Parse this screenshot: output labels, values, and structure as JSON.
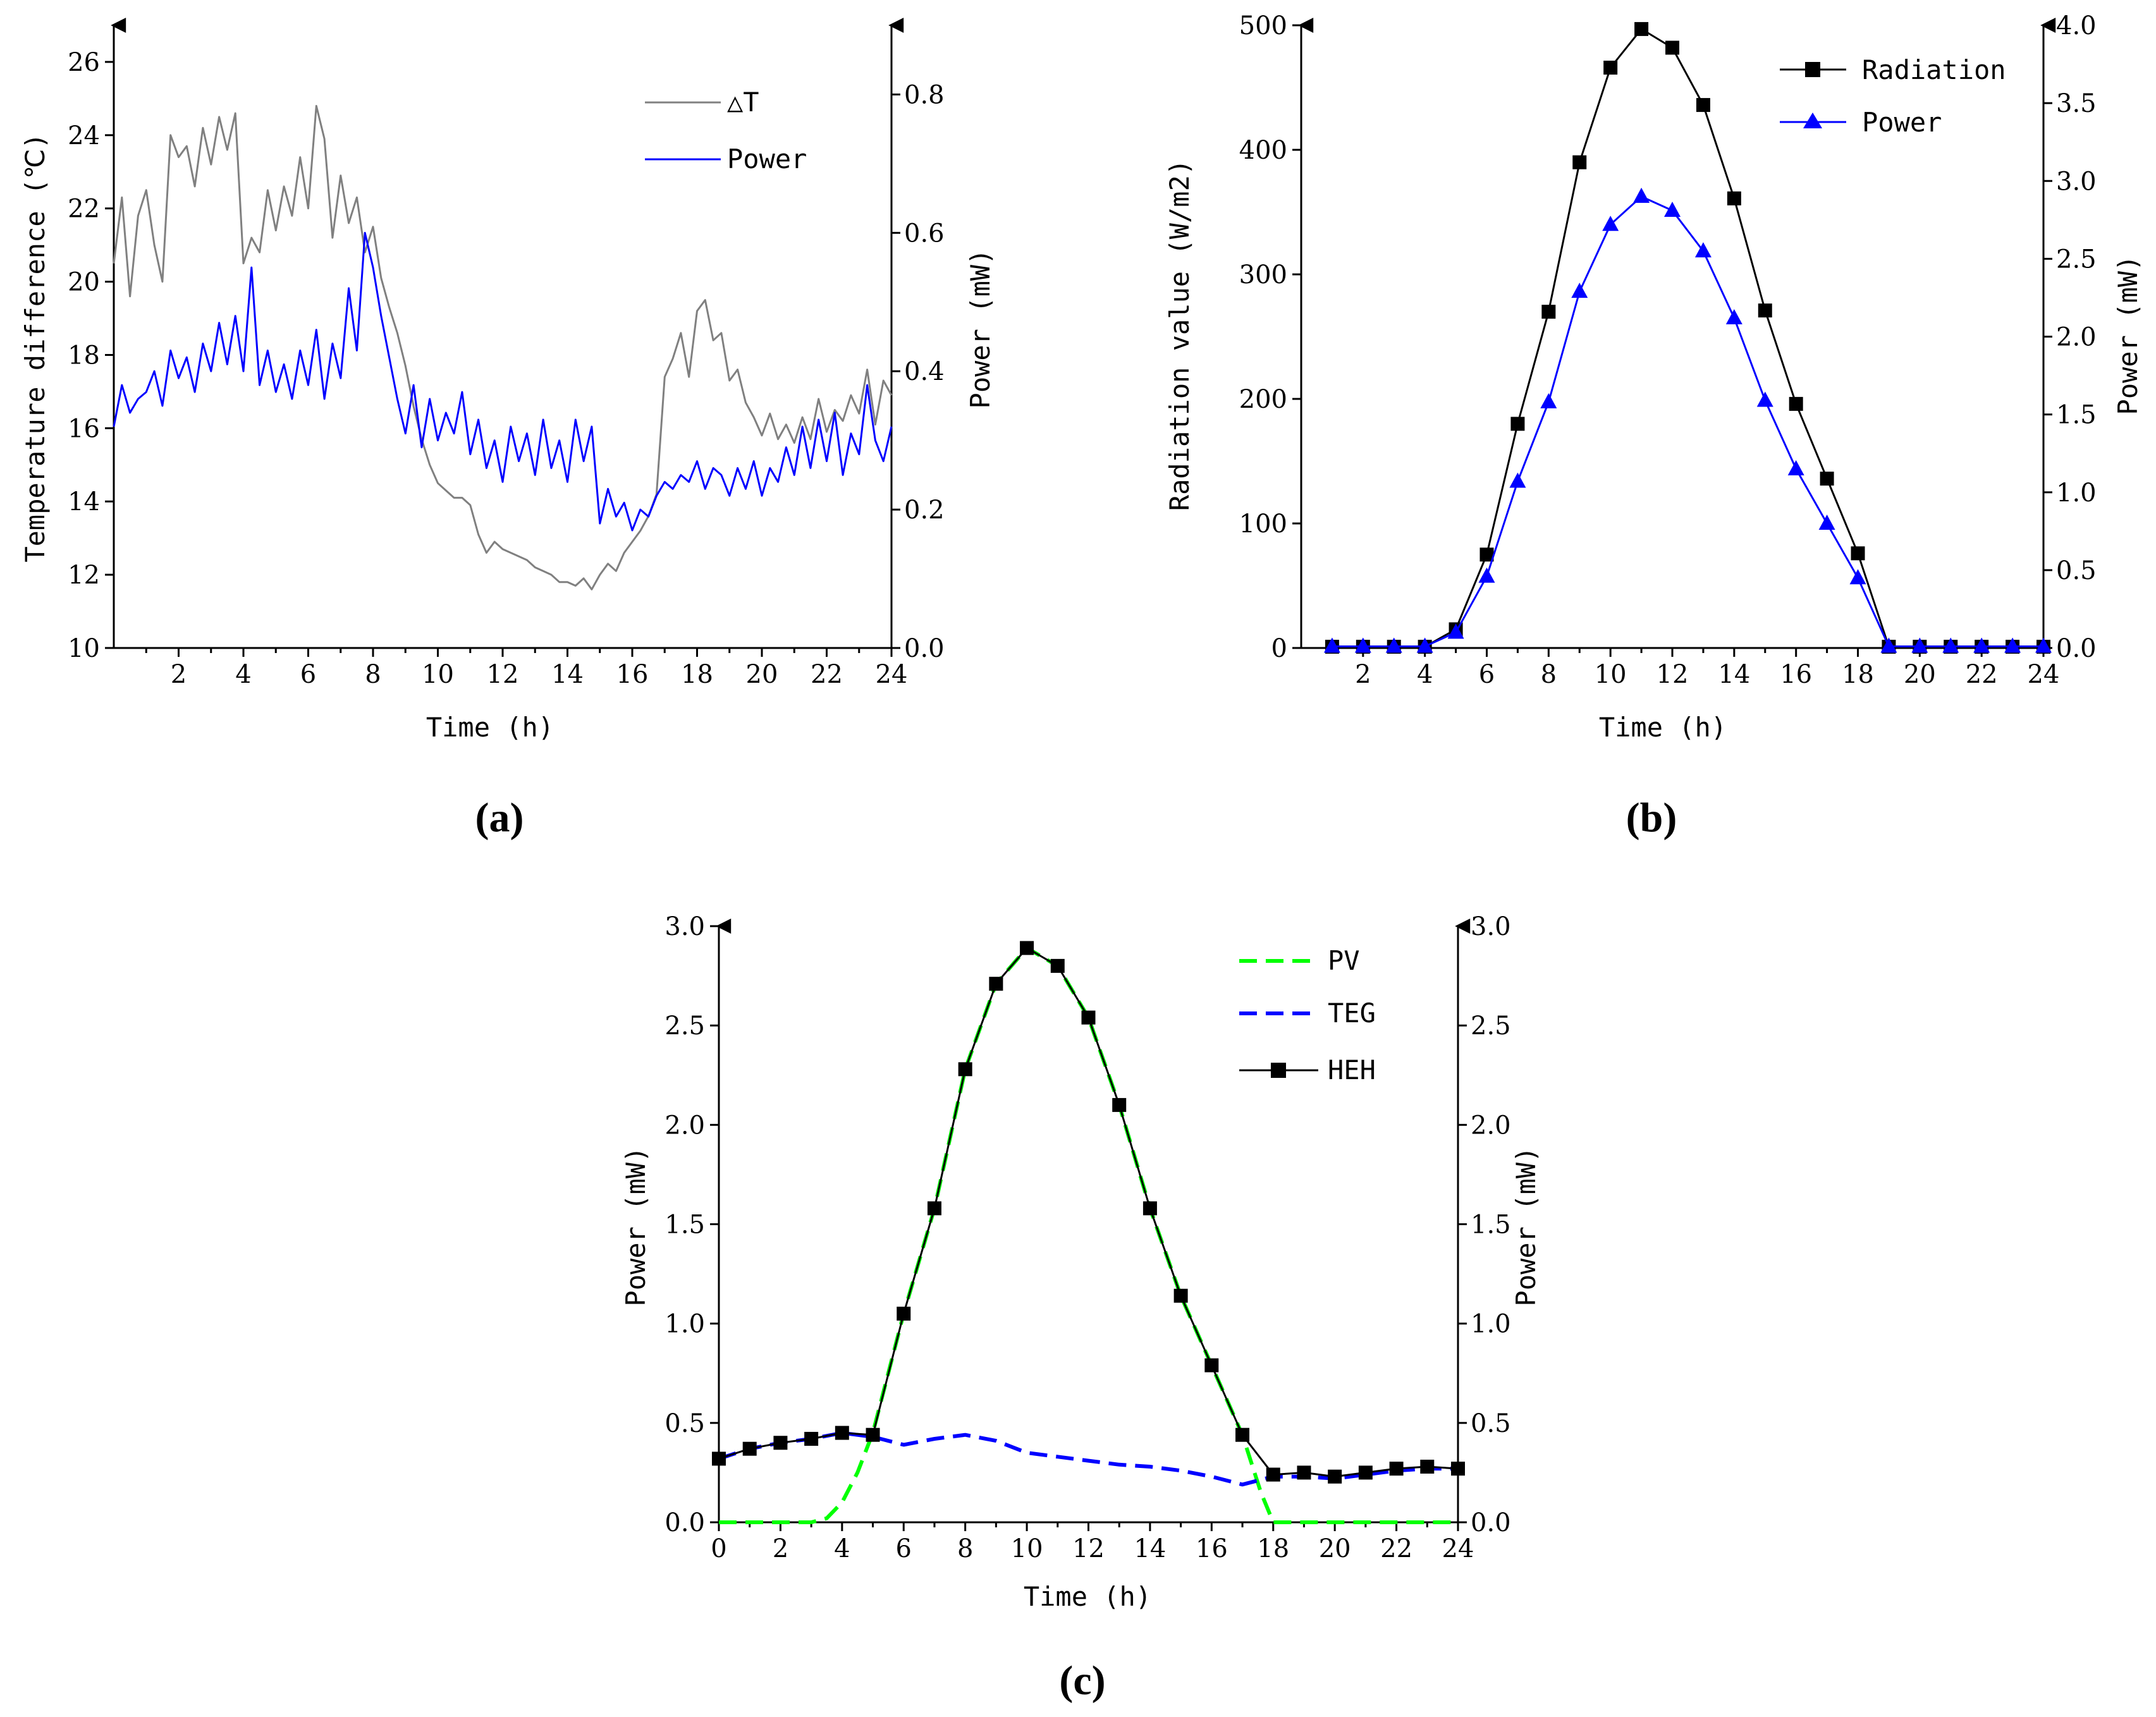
{
  "chart_data": [
    {
      "id": "a",
      "type": "line",
      "caption": "(a)",
      "xlabel": "Time (h)",
      "ylabel": "Temperature difference (℃)",
      "y2label": "Power (mW)",
      "xlim": [
        0,
        24
      ],
      "ylim": [
        10,
        27
      ],
      "y2lim": [
        0,
        0.9
      ],
      "xticks": [
        2,
        4,
        6,
        8,
        10,
        12,
        14,
        16,
        18,
        20,
        22,
        24
      ],
      "yticks": [
        10,
        12,
        14,
        16,
        18,
        20,
        22,
        24,
        26
      ],
      "y2ticks": [
        "0.0",
        "0.2",
        "0.4",
        "0.6",
        "0.8"
      ],
      "series": [
        {
          "name": "△T",
          "axis": "left",
          "color": "#808080",
          "x": [
            0,
            0.25,
            0.5,
            0.75,
            1,
            1.25,
            1.5,
            1.75,
            2,
            2.25,
            2.5,
            2.75,
            3,
            3.25,
            3.5,
            3.75,
            4,
            4.25,
            4.5,
            4.75,
            5,
            5.25,
            5.5,
            5.75,
            6,
            6.25,
            6.5,
            6.75,
            7,
            7.25,
            7.5,
            7.75,
            8,
            8.25,
            8.5,
            8.75,
            9,
            9.25,
            9.5,
            9.75,
            10,
            10.25,
            10.5,
            10.75,
            11,
            11.25,
            11.5,
            11.75,
            12,
            12.25,
            12.5,
            12.75,
            13,
            13.25,
            13.5,
            13.75,
            14,
            14.25,
            14.5,
            14.75,
            15,
            15.25,
            15.5,
            15.75,
            16,
            16.25,
            16.5,
            16.75,
            17,
            17.25,
            17.5,
            17.75,
            18,
            18.25,
            18.5,
            18.75,
            19,
            19.25,
            19.5,
            19.75,
            20,
            20.25,
            20.5,
            20.75,
            21,
            21.25,
            21.5,
            21.75,
            22,
            22.25,
            22.5,
            22.75,
            23,
            23.25,
            23.5,
            23.75,
            24
          ],
          "values": [
            20.5,
            22.3,
            19.6,
            21.8,
            22.5,
            21.0,
            20.0,
            24.0,
            23.4,
            23.7,
            22.6,
            24.2,
            23.2,
            24.5,
            23.6,
            24.6,
            20.5,
            21.2,
            20.8,
            22.5,
            21.4,
            22.6,
            21.8,
            23.4,
            22.0,
            24.8,
            23.9,
            21.2,
            22.9,
            21.6,
            22.3,
            20.8,
            21.5,
            20.1,
            19.3,
            18.6,
            17.7,
            16.6,
            15.7,
            15.0,
            14.5,
            14.3,
            14.1,
            14.1,
            13.9,
            13.1,
            12.6,
            12.9,
            12.7,
            12.6,
            12.5,
            12.4,
            12.2,
            12.1,
            12.0,
            11.8,
            11.8,
            11.7,
            11.9,
            11.6,
            12.0,
            12.3,
            12.1,
            12.6,
            12.9,
            13.2,
            13.6,
            14.2,
            17.4,
            17.9,
            18.6,
            17.4,
            19.2,
            19.5,
            18.4,
            18.6,
            17.3,
            17.6,
            16.7,
            16.3,
            15.8,
            16.4,
            15.7,
            16.1,
            15.6,
            16.3,
            15.7,
            16.8,
            15.9,
            16.5,
            16.2,
            16.9,
            16.4,
            17.6,
            16.1,
            17.3,
            16.9
          ]
        },
        {
          "name": "Power",
          "axis": "right",
          "color": "#0000ff",
          "x": [
            0,
            0.25,
            0.5,
            0.75,
            1,
            1.25,
            1.5,
            1.75,
            2,
            2.25,
            2.5,
            2.75,
            3,
            3.25,
            3.5,
            3.75,
            4,
            4.25,
            4.5,
            4.75,
            5,
            5.25,
            5.5,
            5.75,
            6,
            6.25,
            6.5,
            6.75,
            7,
            7.25,
            7.5,
            7.75,
            8,
            8.25,
            8.5,
            8.75,
            9,
            9.25,
            9.5,
            9.75,
            10,
            10.25,
            10.5,
            10.75,
            11,
            11.25,
            11.5,
            11.75,
            12,
            12.25,
            12.5,
            12.75,
            13,
            13.25,
            13.5,
            13.75,
            14,
            14.25,
            14.5,
            14.75,
            15,
            15.25,
            15.5,
            15.75,
            16,
            16.25,
            16.5,
            16.75,
            17,
            17.25,
            17.5,
            17.75,
            18,
            18.25,
            18.5,
            18.75,
            19,
            19.25,
            19.5,
            19.75,
            20,
            20.25,
            20.5,
            20.75,
            21,
            21.25,
            21.5,
            21.75,
            22,
            22.25,
            22.5,
            22.75,
            23,
            23.25,
            23.5,
            23.75,
            24
          ],
          "values": [
            0.32,
            0.38,
            0.34,
            0.36,
            0.37,
            0.4,
            0.35,
            0.43,
            0.39,
            0.42,
            0.37,
            0.44,
            0.4,
            0.47,
            0.41,
            0.48,
            0.4,
            0.55,
            0.38,
            0.43,
            0.37,
            0.41,
            0.36,
            0.43,
            0.38,
            0.46,
            0.36,
            0.44,
            0.39,
            0.52,
            0.43,
            0.6,
            0.55,
            0.48,
            0.42,
            0.36,
            0.31,
            0.38,
            0.29,
            0.36,
            0.3,
            0.34,
            0.31,
            0.37,
            0.28,
            0.33,
            0.26,
            0.3,
            0.24,
            0.32,
            0.27,
            0.31,
            0.25,
            0.33,
            0.26,
            0.3,
            0.24,
            0.33,
            0.27,
            0.32,
            0.18,
            0.23,
            0.19,
            0.21,
            0.17,
            0.2,
            0.19,
            0.22,
            0.24,
            0.23,
            0.25,
            0.24,
            0.27,
            0.23,
            0.26,
            0.25,
            0.22,
            0.26,
            0.23,
            0.27,
            0.22,
            0.26,
            0.24,
            0.29,
            0.25,
            0.32,
            0.26,
            0.33,
            0.27,
            0.34,
            0.25,
            0.31,
            0.28,
            0.38,
            0.3,
            0.27,
            0.32
          ]
        }
      ]
    },
    {
      "id": "b",
      "type": "line",
      "caption": "(b)",
      "xlabel": "Time (h)",
      "ylabel": "Radiation value (W/m2)",
      "y2label": "Power (mW)",
      "xlim": [
        0,
        24
      ],
      "ylim": [
        0,
        500
      ],
      "y2lim": [
        0,
        4.0
      ],
      "xticks": [
        2,
        4,
        6,
        8,
        10,
        12,
        14,
        16,
        18,
        20,
        22,
        24
      ],
      "yticks": [
        0,
        100,
        200,
        300,
        400,
        500
      ],
      "y2ticks": [
        "0.0",
        "0.5",
        "1.0",
        "1.5",
        "2.0",
        "2.5",
        "3.0",
        "3.5",
        "4.0"
      ],
      "series": [
        {
          "name": "Radiation",
          "axis": "left",
          "color": "#000000",
          "marker": "square",
          "x": [
            1,
            2,
            3,
            4,
            5,
            6,
            7,
            8,
            9,
            10,
            11,
            12,
            13,
            14,
            15,
            16,
            17,
            18,
            19,
            20,
            21,
            22,
            23,
            24
          ],
          "values": [
            1,
            1,
            1,
            1,
            15,
            75,
            180,
            270,
            390,
            466,
            497,
            482,
            436,
            361,
            271,
            196,
            136,
            76,
            1,
            1,
            1,
            1,
            1,
            1
          ]
        },
        {
          "name": "Power",
          "axis": "right",
          "color": "#0000ff",
          "marker": "triangle",
          "x": [
            1,
            2,
            3,
            4,
            5,
            6,
            7,
            8,
            9,
            10,
            11,
            12,
            13,
            14,
            15,
            16,
            17,
            18,
            19,
            20,
            21,
            22,
            23,
            24
          ],
          "values": [
            0.01,
            0.01,
            0.01,
            0.01,
            0.1,
            0.46,
            1.07,
            1.58,
            2.29,
            2.72,
            2.9,
            2.81,
            2.55,
            2.12,
            1.59,
            1.15,
            0.8,
            0.45,
            0.01,
            0.01,
            0.01,
            0.01,
            0.01,
            0.01
          ]
        }
      ]
    },
    {
      "id": "c",
      "type": "line",
      "caption": "(c)",
      "xlabel": "Time (h)",
      "ylabel": "Power (mW)",
      "y2label": "Power (mW)",
      "xlim": [
        0,
        24
      ],
      "ylim": [
        0,
        3.0
      ],
      "y2lim": [
        0,
        3.0
      ],
      "xticks": [
        0,
        2,
        4,
        6,
        8,
        10,
        12,
        14,
        16,
        18,
        20,
        22,
        24
      ],
      "yticks": [
        "0.0",
        "0.5",
        "1.0",
        "1.5",
        "2.0",
        "2.5",
        "3.0"
      ],
      "y2ticks": [
        "0.0",
        "0.5",
        "1.0",
        "1.5",
        "2.0",
        "2.5",
        "3.0"
      ],
      "series": [
        {
          "name": "PV",
          "color": "#00ff00",
          "dashed": true,
          "x": [
            0,
            1,
            2,
            3,
            3.5,
            4,
            4.5,
            5,
            6,
            7,
            8,
            9,
            10,
            11,
            12,
            13,
            14,
            15,
            16,
            17,
            17.6,
            18,
            19,
            20,
            21,
            22,
            23,
            24
          ],
          "values": [
            0,
            0,
            0,
            0,
            0.02,
            0.1,
            0.25,
            0.45,
            1.05,
            1.58,
            2.28,
            2.71,
            2.89,
            2.8,
            2.54,
            2.1,
            1.58,
            1.14,
            0.79,
            0.44,
            0.15,
            0,
            0,
            0,
            0,
            0,
            0,
            0
          ]
        },
        {
          "name": "TEG",
          "color": "#0000ff",
          "dashed": true,
          "x": [
            0,
            1,
            2,
            3,
            4,
            5,
            6,
            7,
            8,
            9,
            10,
            11,
            12,
            13,
            14,
            15,
            16,
            17,
            18,
            19,
            20,
            21,
            22,
            23,
            24
          ],
          "values": [
            0.32,
            0.37,
            0.4,
            0.42,
            0.45,
            0.43,
            0.39,
            0.42,
            0.44,
            0.41,
            0.35,
            0.33,
            0.31,
            0.29,
            0.28,
            0.26,
            0.23,
            0.19,
            0.23,
            0.23,
            0.22,
            0.24,
            0.26,
            0.27,
            0.27
          ]
        },
        {
          "name": "HEH",
          "color": "#000000",
          "marker": "square",
          "x": [
            0,
            1,
            2,
            3,
            4,
            5,
            6,
            7,
            8,
            9,
            10,
            11,
            12,
            13,
            14,
            15,
            16,
            17,
            18,
            19,
            20,
            21,
            22,
            23,
            24
          ],
          "values": [
            0.32,
            0.37,
            0.4,
            0.42,
            0.45,
            0.44,
            1.05,
            1.58,
            2.28,
            2.71,
            2.89,
            2.8,
            2.54,
            2.1,
            1.58,
            1.14,
            0.79,
            0.44,
            0.24,
            0.25,
            0.23,
            0.25,
            0.27,
            0.28,
            0.27
          ]
        }
      ]
    }
  ]
}
